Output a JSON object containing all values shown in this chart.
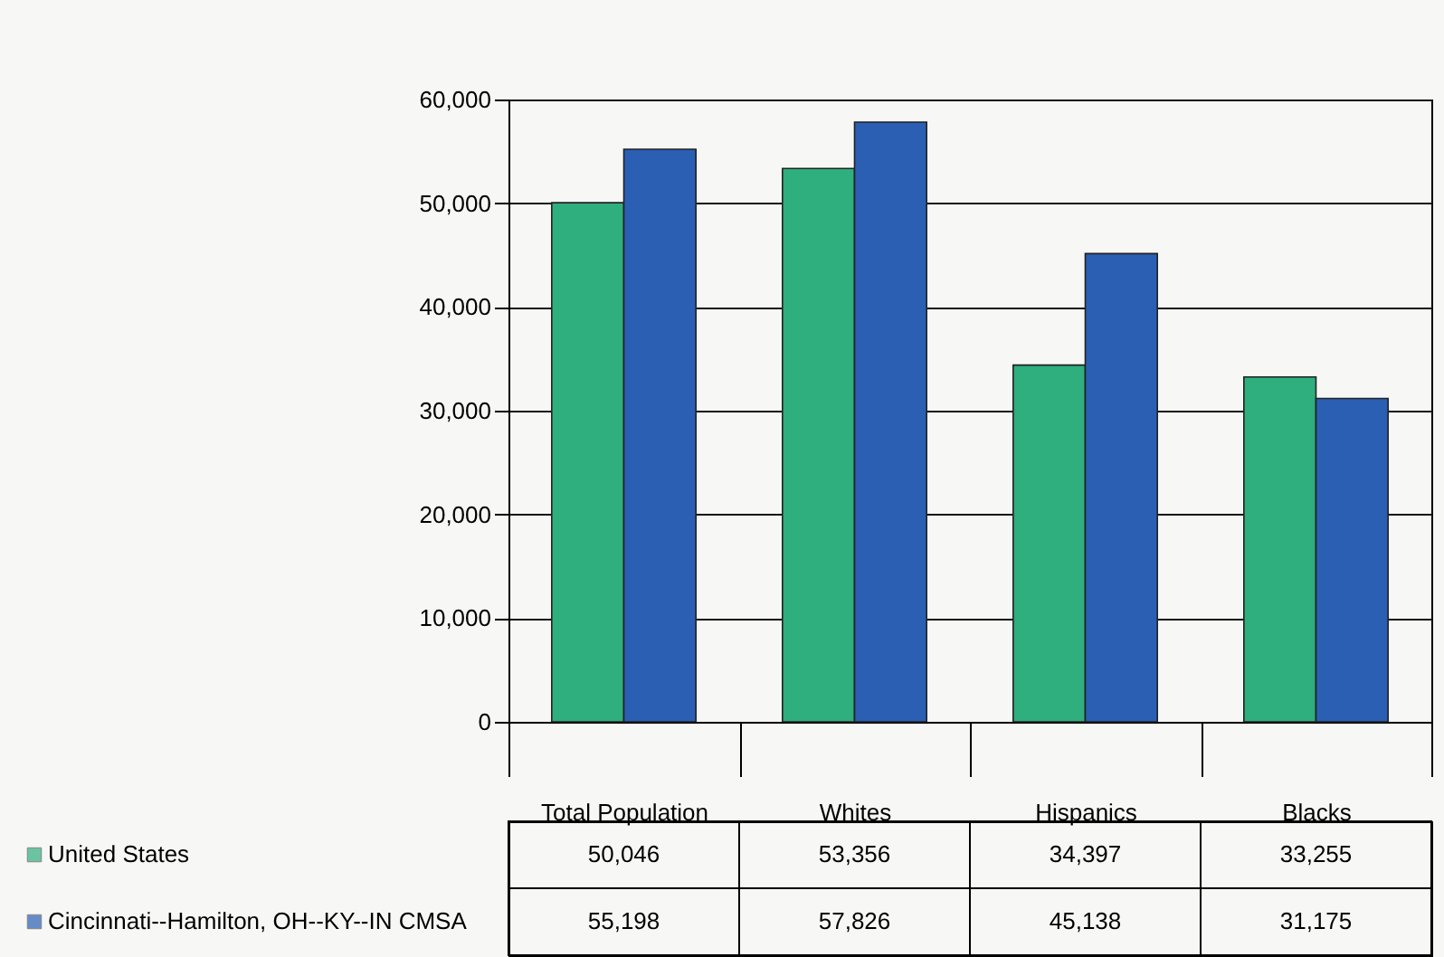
{
  "chart_data": {
    "type": "bar",
    "categories": [
      "Total Population",
      "Whites",
      "Hispanics",
      "Blacks"
    ],
    "series": [
      {
        "name": "United States",
        "color": "#2fae7e",
        "values": [
          50046,
          53356,
          34397,
          33255
        ],
        "value_labels": [
          "50,046",
          "53,356",
          "34,397",
          "33,255"
        ]
      },
      {
        "name": "Cincinnati--Hamilton, OH--KY--IN CMSA",
        "color": "#2a5fb4",
        "values": [
          55198,
          57826,
          45138,
          31175
        ],
        "value_labels": [
          "55,198",
          "57,826",
          "45,138",
          "31,175"
        ]
      }
    ],
    "ylim": [
      0,
      60000
    ],
    "yticks": [
      {
        "value": 0,
        "label": "0"
      },
      {
        "value": 10000,
        "label": "10,000"
      },
      {
        "value": 20000,
        "label": "20,000"
      },
      {
        "value": 30000,
        "label": "30,000"
      },
      {
        "value": 40000,
        "label": "40,000"
      },
      {
        "value": 50000,
        "label": "50,000"
      },
      {
        "value": 60000,
        "label": "60,000"
      }
    ],
    "grid": "y",
    "legend": "bottom"
  }
}
